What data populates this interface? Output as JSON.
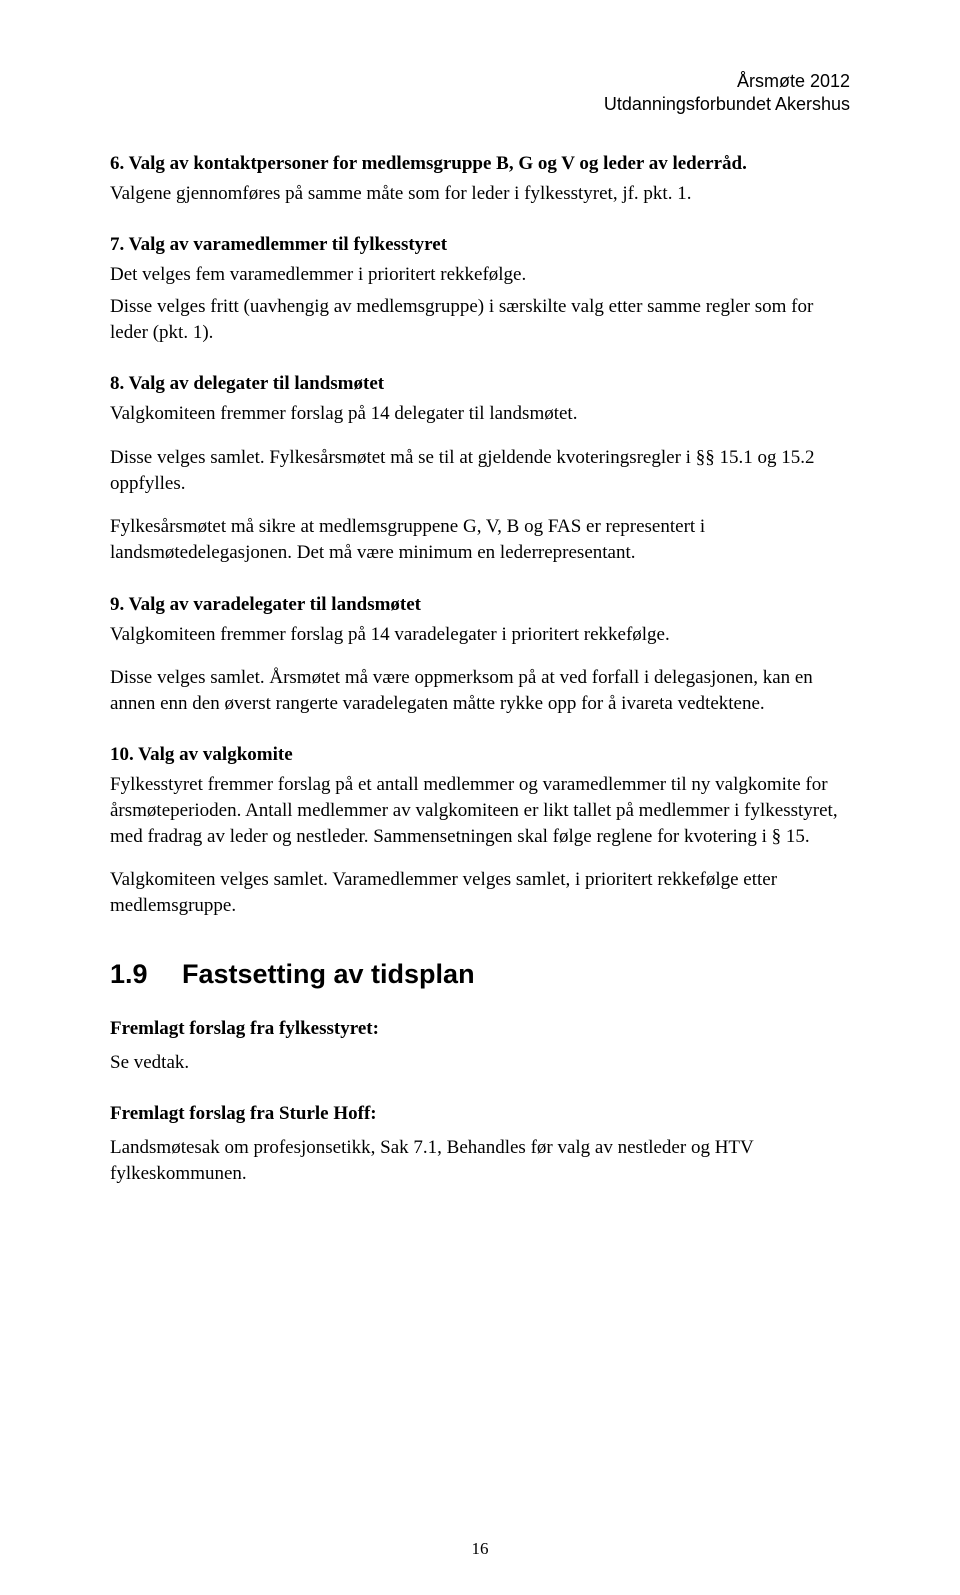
{
  "header": {
    "line1": "Årsmøte 2012",
    "line2": "Utdanningsforbundet Akershus"
  },
  "sections": {
    "s6": {
      "heading": "6.  Valg av kontaktpersoner for medlemsgruppe B, G og V og leder av lederråd.",
      "p1": "Valgene gjennomføres på samme måte som for leder i fylkesstyret, jf. pkt. 1."
    },
    "s7": {
      "heading": "7.  Valg av varamedlemmer til fylkesstyret",
      "p1": "Det velges fem varamedlemmer i prioritert rekkefølge.",
      "p2": "Disse velges fritt (uavhengig av medlemsgruppe) i særskilte valg etter samme regler som for leder (pkt. 1)."
    },
    "s8": {
      "heading": "8.  Valg av delegater til landsmøtet",
      "p1": "Valgkomiteen fremmer forslag på 14 delegater til landsmøtet.",
      "p2": "Disse velges samlet. Fylkesårsmøtet må se til at gjeldende kvoteringsregler i §§ 15.1 og 15.2 oppfylles.",
      "p3": "Fylkesårsmøtet må sikre at medlemsgruppene G, V, B og FAS er representert i landsmøtedelegasjonen. Det må være minimum en lederrepresentant."
    },
    "s9": {
      "heading": "9.  Valg av varadelegater til landsmøtet",
      "p1": "Valgkomiteen fremmer forslag på 14 varadelegater i prioritert rekkefølge.",
      "p2": "Disse velges samlet. Årsmøtet må være oppmerksom på at ved forfall i delegasjonen, kan en annen enn den øverst rangerte varadelegaten måtte rykke opp for å ivareta vedtektene."
    },
    "s10": {
      "heading": "10. Valg av valgkomite",
      "p1": "Fylkesstyret fremmer forslag på et antall medlemmer og varamedlemmer til ny valgkomite for årsmøteperioden. Antall medlemmer av valgkomiteen er likt tallet på medlemmer i fylkesstyret, med fradrag av leder og nestleder. Sammensetningen skal følge reglene for kvotering i § 15.",
      "p2": "Valgkomiteen velges samlet. Varamedlemmer velges samlet, i prioritert rekkefølge etter medlemsgruppe."
    },
    "h1": {
      "num": "1.9",
      "title": "Fastsetting av tidsplan"
    },
    "forslag1": {
      "heading": "Fremlagt forslag fra fylkesstyret:",
      "p1": "Se vedtak."
    },
    "forslag2": {
      "heading": "Fremlagt forslag fra Sturle Hoff:",
      "p1": "Landsmøtesak om profesjonsetikk, Sak 7.1, Behandles før valg av nestleder og HTV fylkeskommunen."
    }
  },
  "page_number": "16"
}
